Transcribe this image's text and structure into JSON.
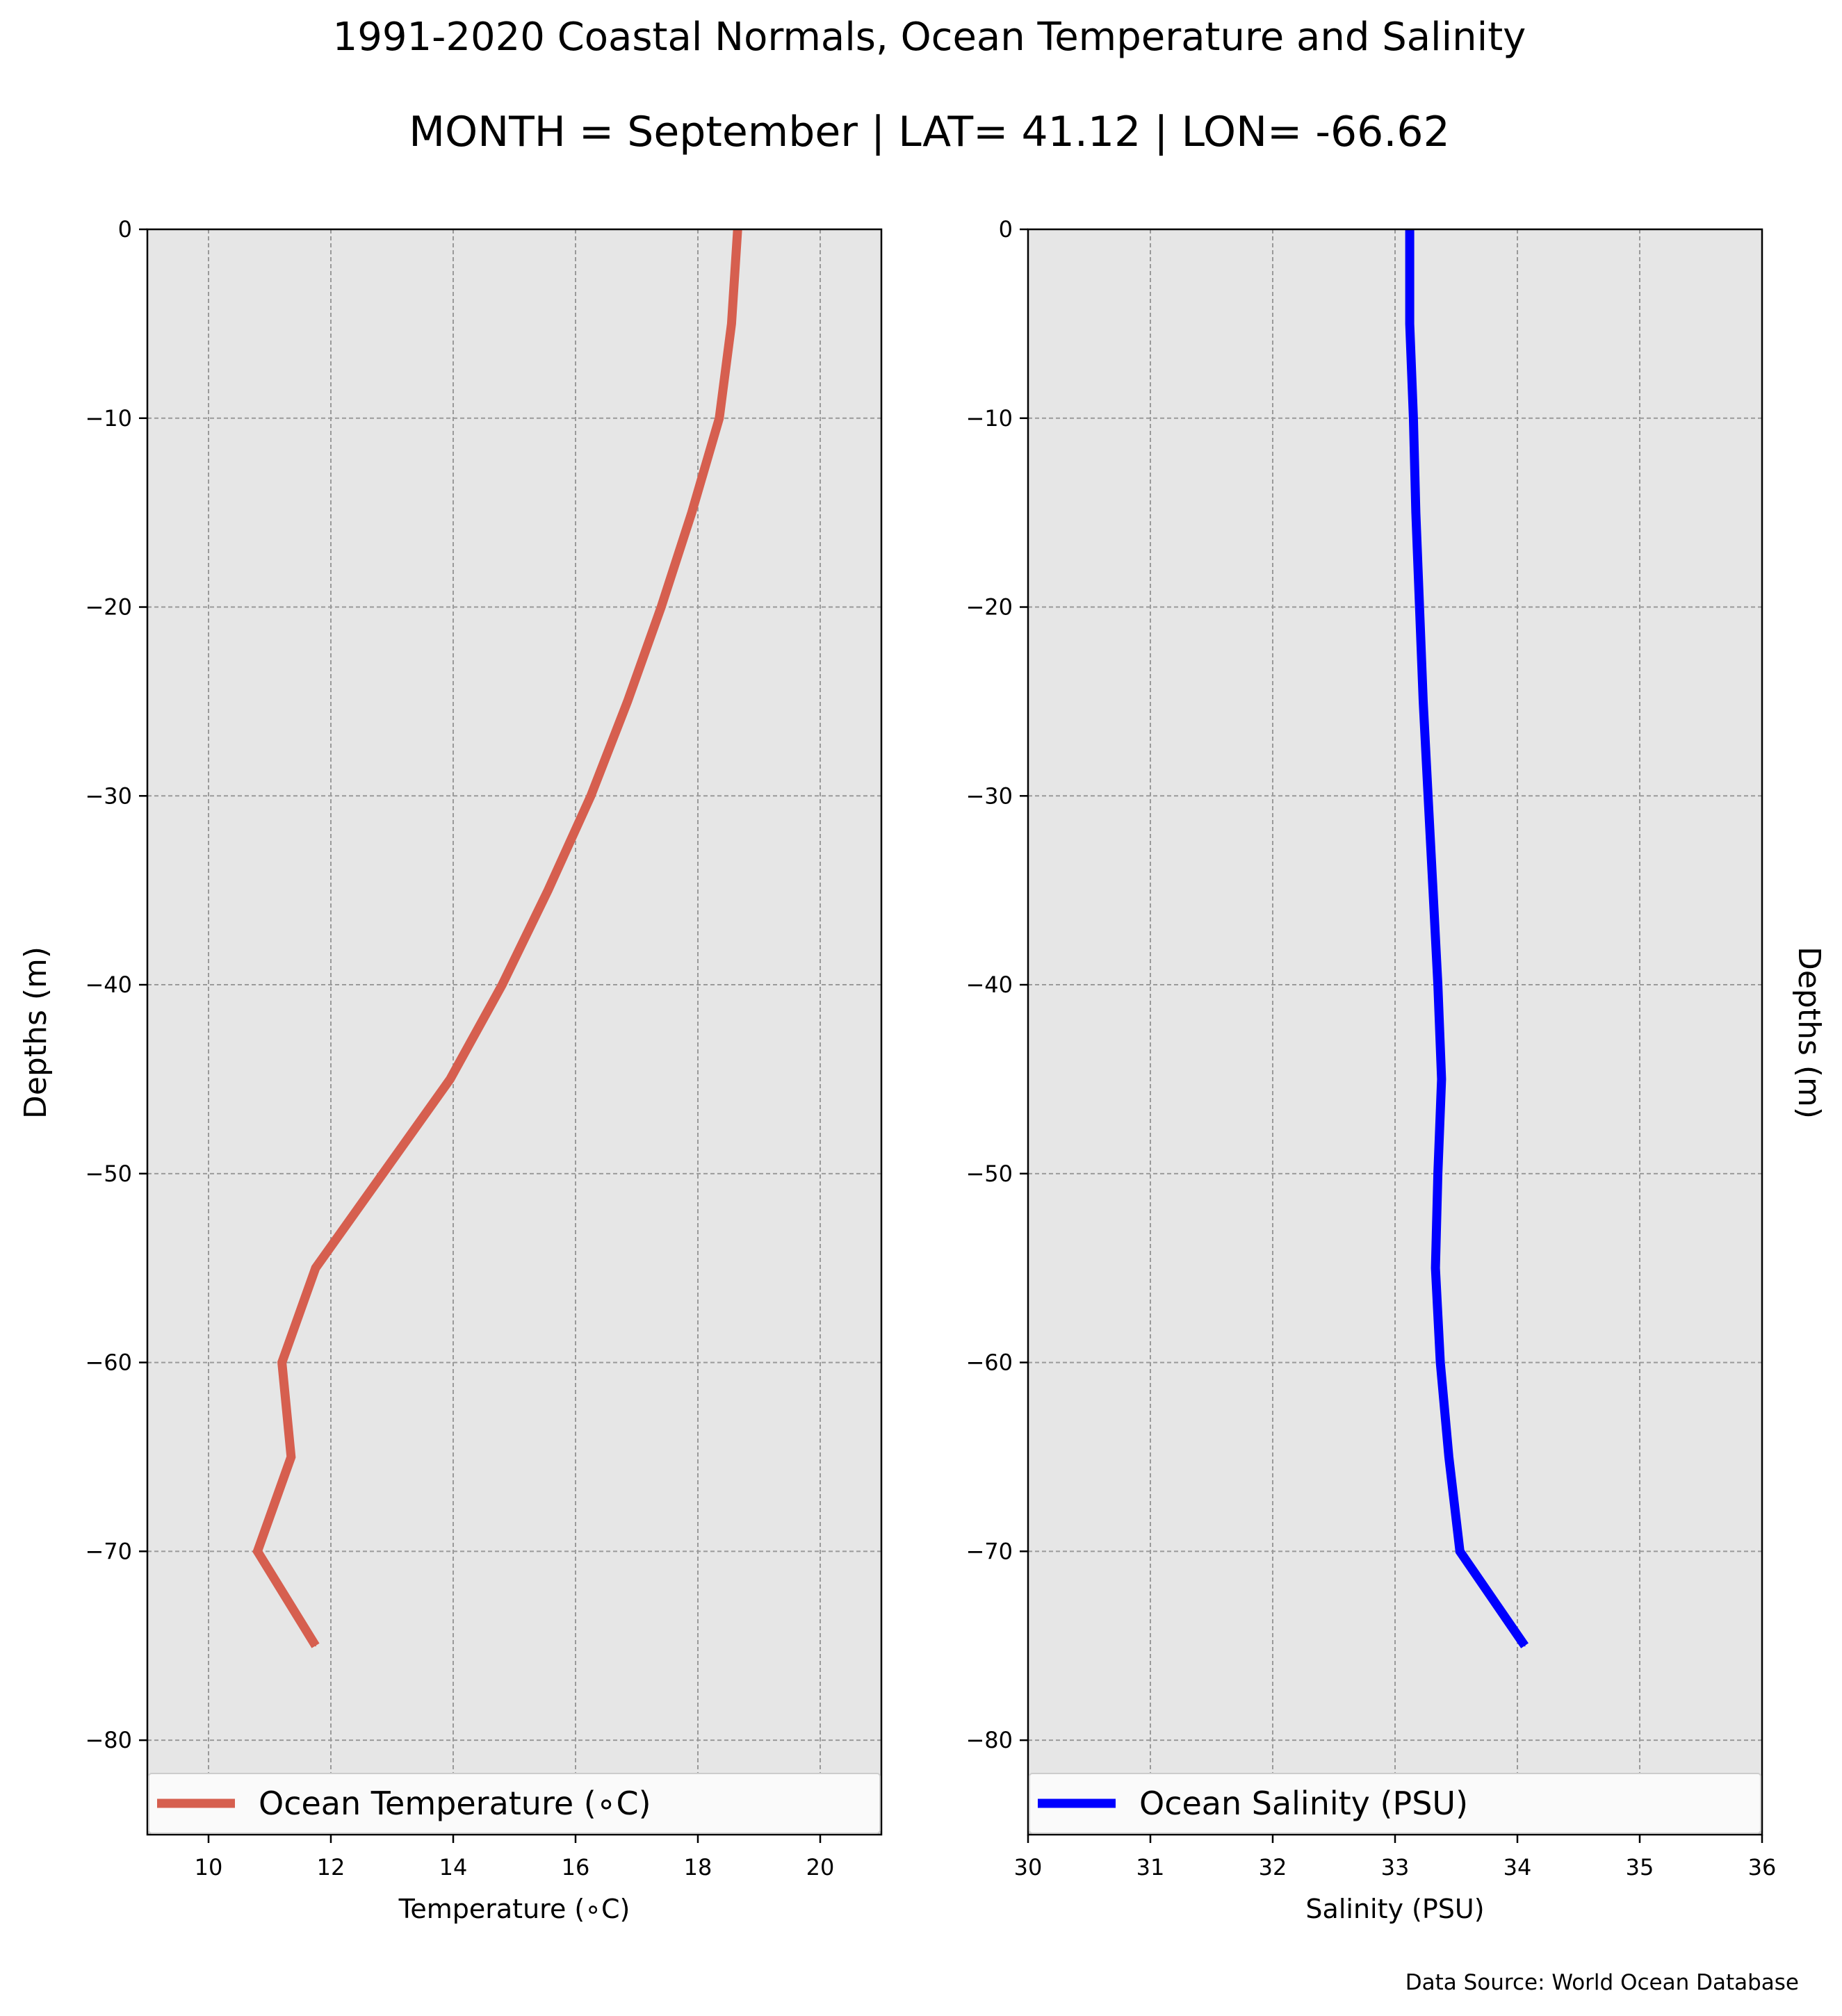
{
  "figure": {
    "title": "1991-2020 Coastal Normals, Ocean Temperature and Salinity",
    "subtitle": "MONTH = September | LAT= 41.12 | LON= -66.62",
    "source": "Data Source: World Ocean Database"
  },
  "chart_data": [
    {
      "type": "line",
      "xlabel": "Temperature (∘C)",
      "ylabel": "Depths (m)",
      "xlim": [
        9,
        21
      ],
      "ylim": [
        -85,
        0
      ],
      "xticks": [
        10,
        12,
        14,
        16,
        18,
        20
      ],
      "xtick_labels": [
        "10",
        "12",
        "14",
        "16",
        "18",
        "20"
      ],
      "yticks": [
        0,
        -10,
        -20,
        -30,
        -40,
        -50,
        -60,
        -70,
        -80
      ],
      "ytick_labels": [
        "0",
        "−10",
        "−20",
        "−30",
        "−40",
        "−50",
        "−60",
        "−70",
        "−80"
      ],
      "grid": true,
      "legend_position": "lower",
      "background": "#e6e6e6",
      "series": [
        {
          "name": "Ocean Temperature (∘C)",
          "color": "#d65f4f",
          "x": [
            18.65,
            18.55,
            18.35,
            17.9,
            17.4,
            16.85,
            16.25,
            15.55,
            14.8,
            13.95,
            12.85,
            11.75,
            11.2,
            11.35,
            10.8,
            11.75
          ],
          "y": [
            0,
            -5,
            -10,
            -15,
            -20,
            -25,
            -30,
            -35,
            -40,
            -45,
            -50,
            -55,
            -60,
            -65,
            -70,
            -75
          ]
        }
      ]
    },
    {
      "type": "line",
      "xlabel": "Salinity (PSU)",
      "ylabel": "Depths (m)",
      "xlim": [
        30,
        36
      ],
      "ylim": [
        -85,
        0
      ],
      "xticks": [
        30,
        31,
        32,
        33,
        34,
        35,
        36
      ],
      "xtick_labels": [
        "30",
        "31",
        "32",
        "33",
        "34",
        "35",
        "36"
      ],
      "yticks": [
        0,
        -10,
        -20,
        -30,
        -40,
        -50,
        -60,
        -70,
        -80
      ],
      "ytick_labels": [
        "0",
        "−10",
        "−20",
        "−30",
        "−40",
        "−50",
        "−60",
        "−70",
        "−80"
      ],
      "grid": true,
      "legend_position": "lower",
      "background": "#e6e6e6",
      "series": [
        {
          "name": "Ocean Salinity (PSU)",
          "color": "#0000ff",
          "x": [
            33.12,
            33.12,
            33.15,
            33.17,
            33.2,
            33.23,
            33.27,
            33.31,
            33.35,
            33.38,
            33.35,
            33.33,
            33.37,
            33.44,
            33.53,
            34.06
          ],
          "y": [
            0,
            -5,
            -10,
            -15,
            -20,
            -25,
            -30,
            -35,
            -40,
            -45,
            -50,
            -55,
            -60,
            -65,
            -70,
            -75
          ]
        }
      ]
    }
  ]
}
